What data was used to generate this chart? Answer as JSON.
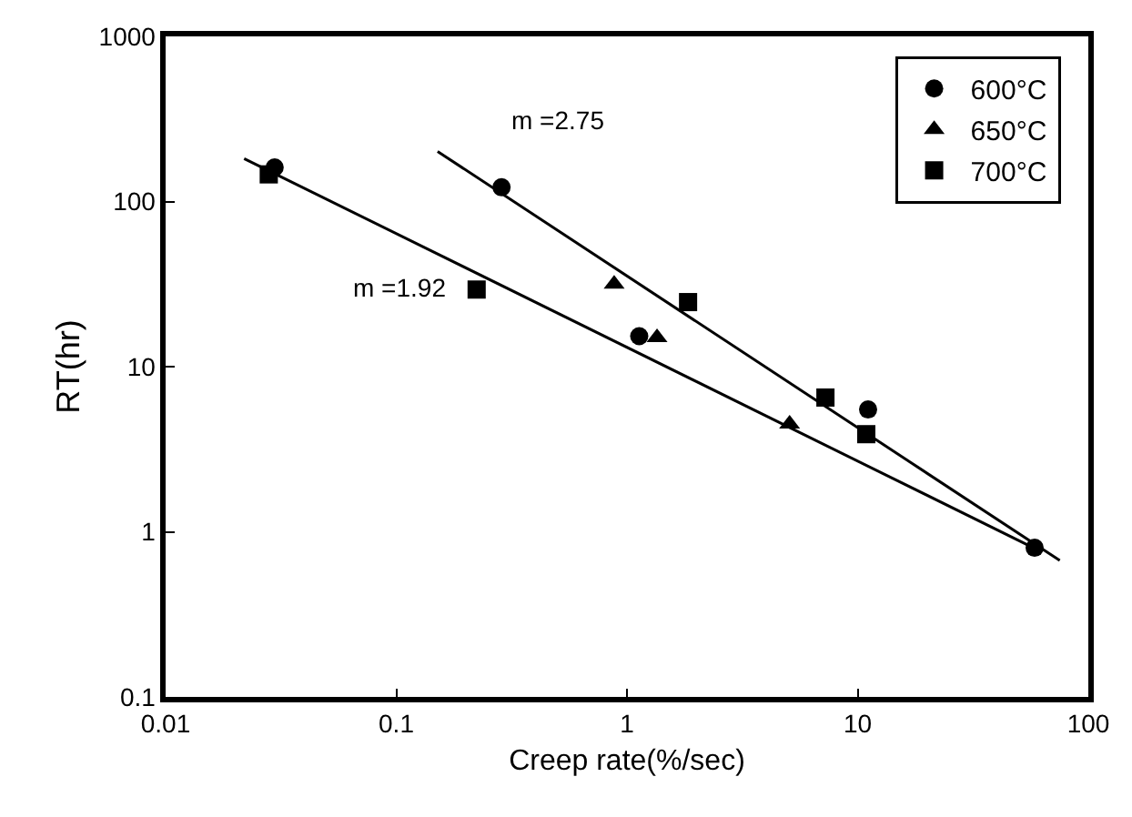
{
  "chart_data": {
    "type": "scatter",
    "xlabel": "Creep rate(%/sec)",
    "ylabel": "RT(hr)",
    "log": "xy",
    "xlim": [
      0.01,
      100
    ],
    "ylim": [
      0.1,
      1000
    ],
    "xticks": [
      0.01,
      0.1,
      1,
      10,
      100
    ],
    "yticks": [
      0.1,
      1,
      10,
      100,
      1000
    ],
    "legend": "top right",
    "series": [
      {
        "name": "600°C",
        "color": "#000000",
        "marker": "circle",
        "x": [
          0.0297,
          0.286,
          1.13,
          11.1,
          58.5
        ],
        "values": [
          161,
          122,
          15.3,
          5.5,
          0.8
        ]
      },
      {
        "name": "650°C",
        "color": "#000000",
        "marker": "triangle",
        "x": [
          0.88,
          1.35,
          5.07
        ],
        "values": [
          31.6,
          15,
          4.5
        ]
      },
      {
        "name": "700°C",
        "color": "#000000",
        "marker": "square",
        "x": [
          0.028,
          0.223,
          1.84,
          7.25,
          10.9
        ],
        "values": [
          146,
          29.3,
          24.6,
          6.5,
          3.9
        ]
      },
      {
        "type": "line",
        "color": "#000000",
        "marker": "none",
        "line_style": "solid",
        "x": [
          0.151,
          75.2
        ],
        "values": [
          201,
          0.67
        ]
      },
      {
        "type": "line",
        "color": "#000000",
        "marker": "none",
        "line_style": "solid",
        "x": [
          0.0219,
          60
        ],
        "values": [
          182,
          0.78
        ]
      }
    ],
    "annotations": [
      "m =2.75",
      "m =1.92"
    ]
  }
}
